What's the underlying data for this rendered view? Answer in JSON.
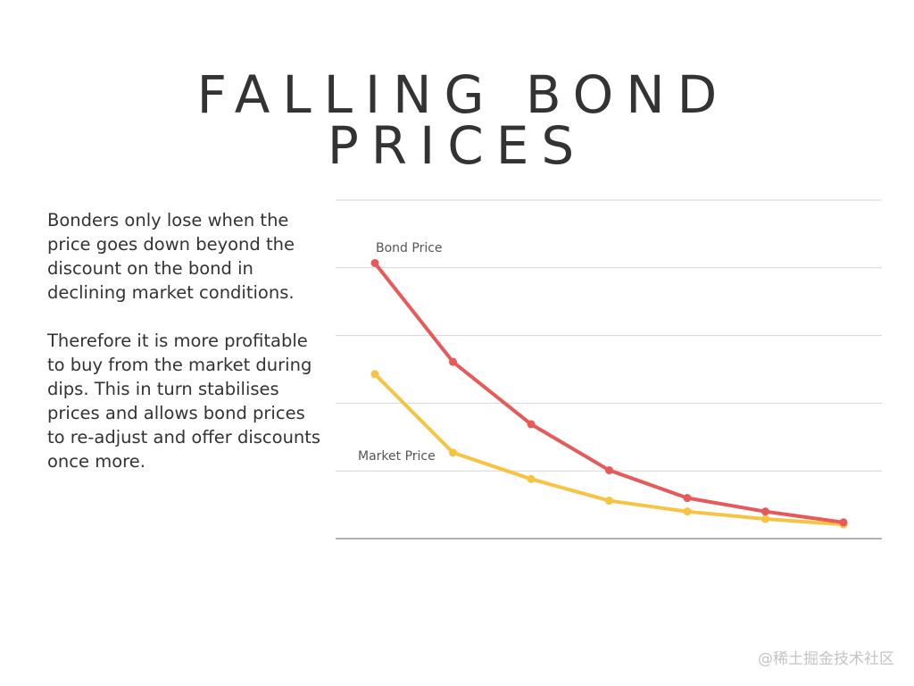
{
  "title_line1": "FALLING BOND",
  "title_line2": "PRICES",
  "paragraphs": [
    "Bonders only lose when the price goes down beyond the discount on the bond in declining market conditions.",
    "Therefore it is more profitable to buy from the market during dips. This in turn stabilises prices and allows bond prices to re-adjust and offer discounts once more."
  ],
  "watermark": "@稀土掘金技术社区",
  "chart_data": {
    "type": "line",
    "title": "",
    "xlabel": "",
    "ylabel": "",
    "x": [
      1,
      2,
      3,
      4,
      5,
      6,
      7
    ],
    "ylim": [
      0,
      5
    ],
    "grid": true,
    "series": [
      {
        "name": "Bond Price",
        "color": "#e85959",
        "values": [
          4.07,
          2.61,
          1.69,
          1.01,
          0.6,
          0.4,
          0.24
        ]
      },
      {
        "name": "Market Price",
        "color": "#f6c342",
        "values": [
          2.43,
          1.27,
          0.88,
          0.56,
          0.4,
          0.29,
          0.21
        ]
      }
    ]
  }
}
